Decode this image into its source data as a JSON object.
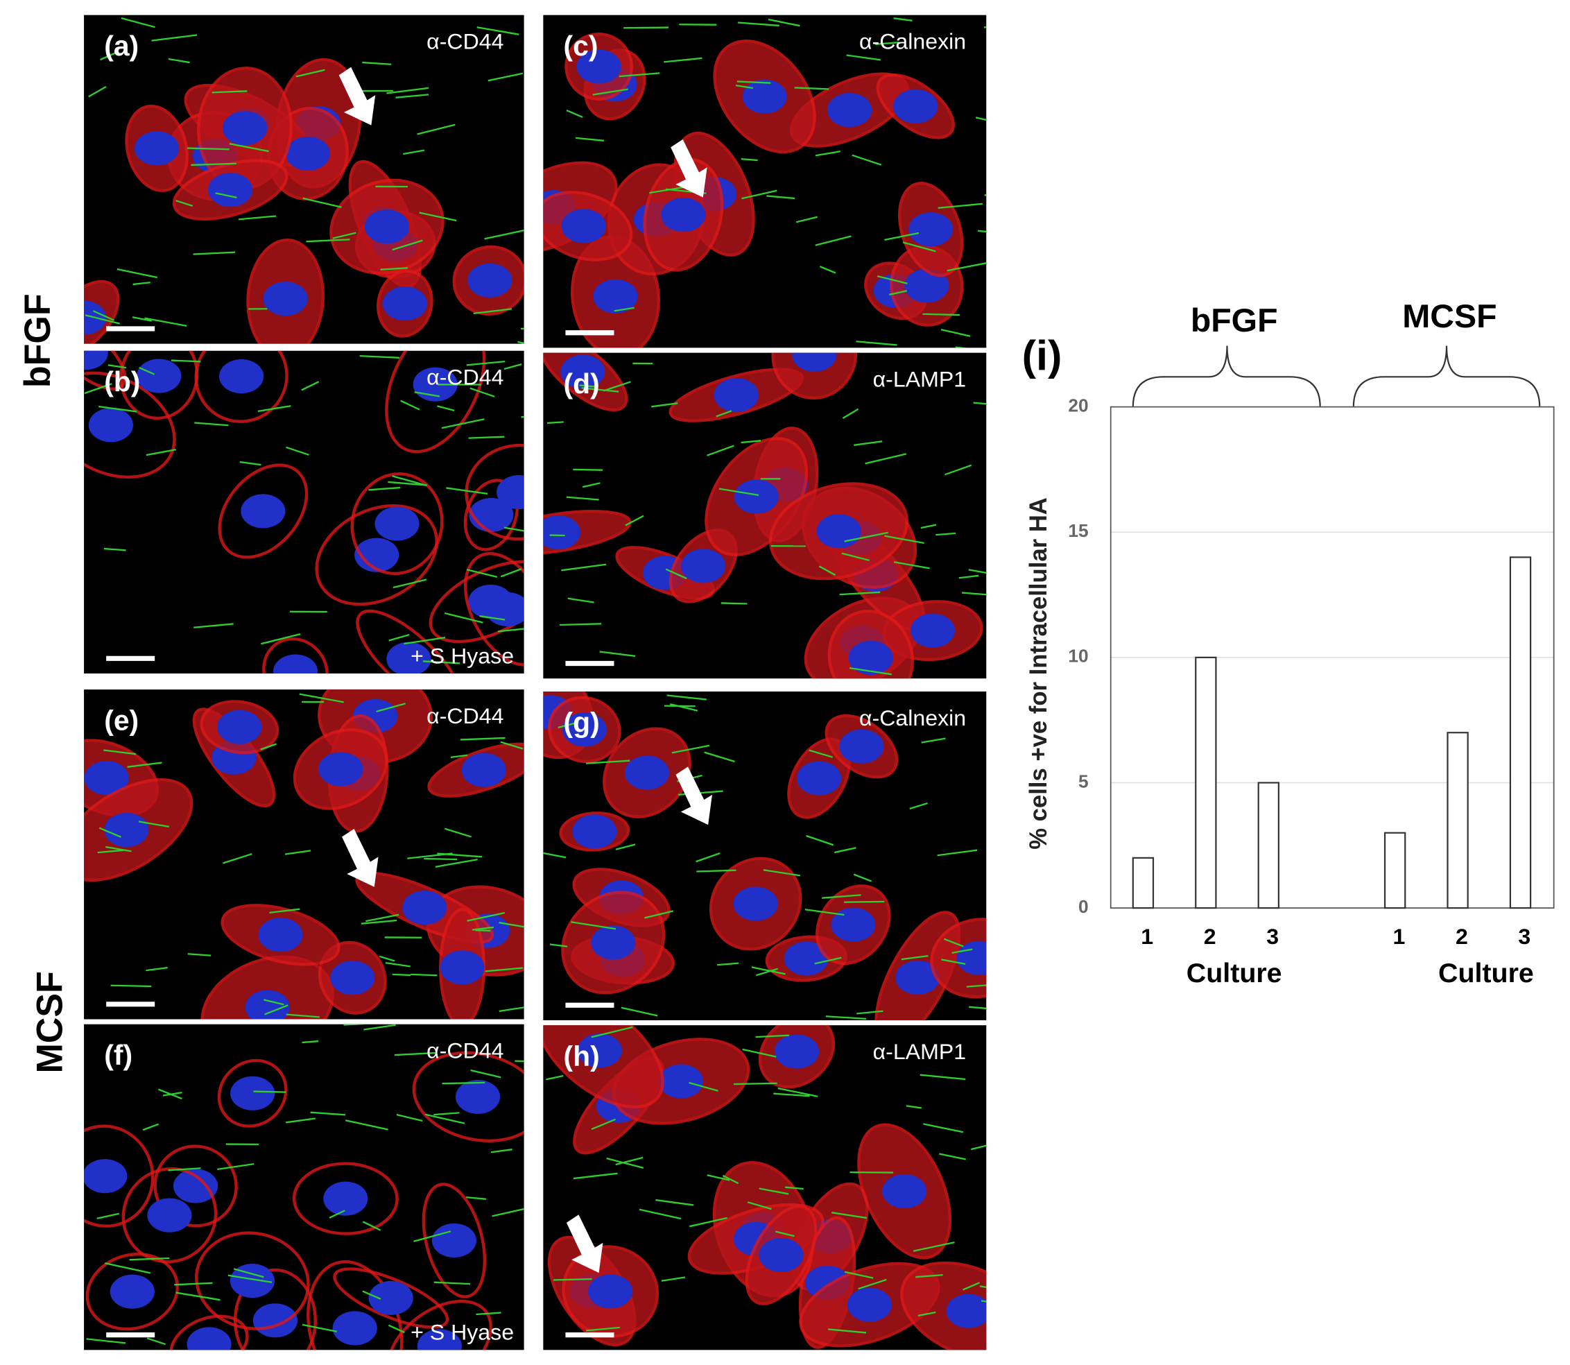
{
  "row_labels": [
    "bFGF",
    "MCSF"
  ],
  "panels": [
    {
      "label": "(a)",
      "stain": "α-CD44"
    },
    {
      "label": "(b)",
      "stain": "α-CD44",
      "treatment": "+ S Hyase"
    },
    {
      "label": "(c)",
      "stain": "α-Calnexin"
    },
    {
      "label": "(d)",
      "stain": "α-LAMP1"
    },
    {
      "label": "(e)",
      "stain": "α-CD44"
    },
    {
      "label": "(f)",
      "stain": "α-CD44",
      "treatment": "+ S Hyase"
    },
    {
      "label": "(g)",
      "stain": "α-Calnexin"
    },
    {
      "label": "(h)",
      "stain": "α-LAMP1"
    }
  ],
  "chart_data": {
    "type": "bar",
    "panel_label": "(i)",
    "y_label": "% cells +ve for Intracellular HA",
    "groups": [
      {
        "name": "bFGF",
        "x_label": "Culture",
        "categories": [
          "1",
          "2",
          "3"
        ],
        "values": [
          2,
          10,
          5
        ]
      },
      {
        "name": "MCSF",
        "x_label": "Culture",
        "categories": [
          "1",
          "2",
          "3"
        ],
        "values": [
          3,
          7,
          14
        ]
      }
    ],
    "color": "#ffffff",
    "ylim": [
      0,
      20
    ],
    "yticks": [
      0,
      5,
      10,
      15,
      20
    ],
    "grid": true
  }
}
